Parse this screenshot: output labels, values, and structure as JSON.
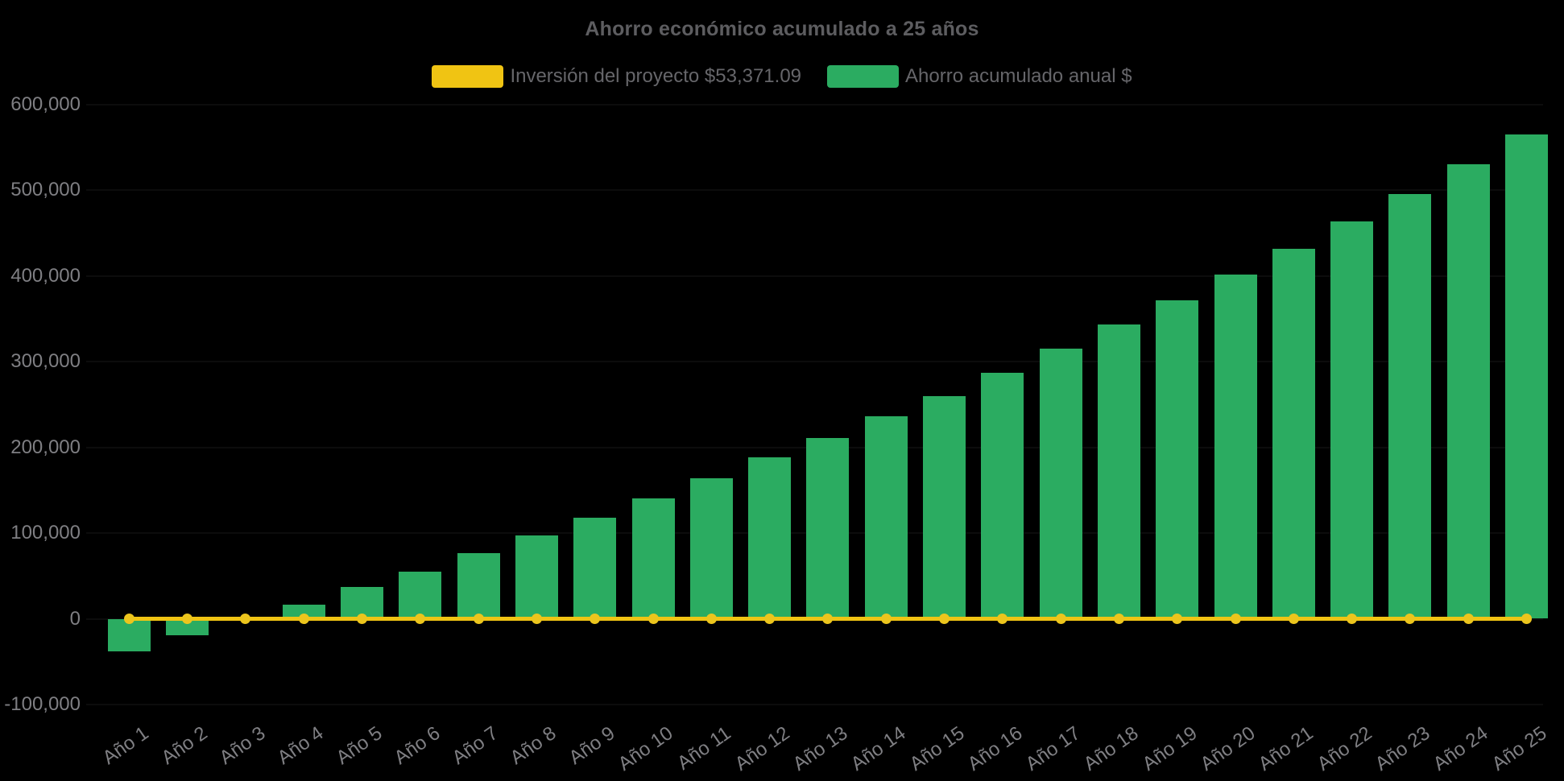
{
  "chart_data": {
    "type": "bar",
    "title": "Ahorro económico acumulado a 25 años",
    "categories": [
      "Año 1",
      "Año 2",
      "Año 3",
      "Año 4",
      "Año 5",
      "Año 6",
      "Año 7",
      "Año 8",
      "Año 9",
      "Año 10",
      "Año 11",
      "Año 12",
      "Año 13",
      "Año 14",
      "Año 15",
      "Año 16",
      "Año 17",
      "Año 18",
      "Año 19",
      "Año 20",
      "Año 21",
      "Año 22",
      "Año 23",
      "Año 24",
      "Año 25"
    ],
    "series": [
      {
        "name": "Inversión del proyecto $53,371.09",
        "type": "line",
        "color": "#f0c413",
        "marker_color": "#ecc51d",
        "values": [
          0,
          0,
          0,
          0,
          0,
          0,
          0,
          0,
          0,
          0,
          0,
          0,
          0,
          0,
          0,
          0,
          0,
          0,
          0,
          0,
          0,
          0,
          0,
          0,
          0
        ]
      },
      {
        "name": "Ahorro acumulado anual $",
        "type": "bar",
        "color": "#2bac61",
        "values": [
          -38500,
          -19000,
          0,
          16500,
          37000,
          55000,
          77000,
          97000,
          118000,
          140000,
          164000,
          188000,
          211000,
          236000,
          260000,
          287000,
          315000,
          343000,
          372000,
          402000,
          432000,
          464000,
          496000,
          530000,
          565000
        ]
      }
    ],
    "ylim": [
      -100000,
      600000
    ],
    "yticks": [
      {
        "value": 600000,
        "label": "600,000"
      },
      {
        "value": 500000,
        "label": "500,000"
      },
      {
        "value": 400000,
        "label": "400,000"
      },
      {
        "value": 300000,
        "label": "300,000"
      },
      {
        "value": 200000,
        "label": "200,000"
      },
      {
        "value": 100000,
        "label": "100,000"
      },
      {
        "value": 0,
        "label": "0"
      },
      {
        "value": -100000,
        "label": "-100,000"
      }
    ],
    "grid": "hidden (black gridlines on black background)",
    "legend_position": "top-center",
    "background_color": "#000000",
    "text_colors": {
      "title": "#5d5d60",
      "legend": "#66666a",
      "axis_labels": "#7f7f83"
    }
  }
}
